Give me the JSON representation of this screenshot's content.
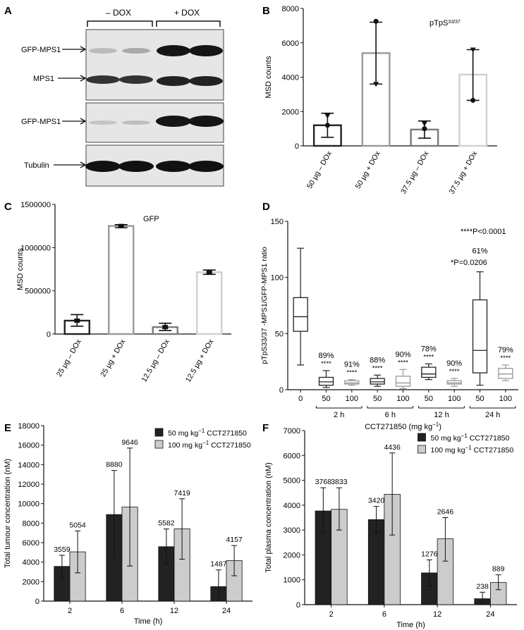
{
  "panel_letters": {
    "A": "A",
    "B": "B",
    "C": "C",
    "D": "D",
    "E": "E",
    "F": "F"
  },
  "blot": {
    "minus_dox": "– DOX",
    "plus_dox": "+ DOX",
    "labels": [
      "GFP-MPS1",
      "MPS1",
      "GFP-MPS1",
      "Tubulin"
    ]
  },
  "colors": {
    "dark_bar": "#222222",
    "light_bar": "#cccccc",
    "grey_bar": "#888888",
    "pale_bar": "#c8c8c8"
  },
  "chart_data": [
    {
      "id": "B",
      "type": "bar",
      "annotation": "pTpS",
      "annotation_sup": "33/37",
      "ylabel": "MSD counts",
      "ylim": [
        0,
        8000
      ],
      "yticks": [
        "0",
        "2000",
        "4000",
        "6000",
        "8000"
      ],
      "categories": [
        "50 µg – DOx",
        "50 µg + DOx",
        "37.5 µg – DOx",
        "37.5 µg + DOx"
      ],
      "values": [
        1200,
        5400,
        950,
        4150
      ],
      "error": [
        [
          500,
          1900
        ],
        [
          3600,
          7200
        ],
        [
          450,
          1450
        ],
        [
          2650,
          5600
        ]
      ],
      "points": [
        [
          1200,
          1750
        ],
        [
          7250,
          3600
        ],
        [
          1000,
          1300
        ],
        [
          2650,
          5600
        ]
      ],
      "bar_colors": [
        "#222222",
        "#9a9a9a",
        "#7a7a7a",
        "#d0d0d0"
      ]
    },
    {
      "id": "C",
      "type": "bar",
      "annotation": "GFP",
      "ylabel": "MSD counts",
      "ylim": [
        0,
        1500000
      ],
      "yticks": [
        "0",
        "500000",
        "1000000",
        "1500000"
      ],
      "categories": [
        "25 µg – DOx",
        "25 µg + DOx",
        "12.5 µg – DOx",
        "12.5 µg + DOx"
      ],
      "values": [
        155000,
        1250000,
        80000,
        715000
      ],
      "error": [
        [
          90000,
          225000
        ],
        [
          1230000,
          1265000
        ],
        [
          40000,
          125000
        ],
        [
          690000,
          740000
        ]
      ],
      "bar_colors": [
        "#222222",
        "#9a9a9a",
        "#7a7a7a",
        "#d0d0d0"
      ]
    },
    {
      "id": "D",
      "type": "boxplot",
      "ylabel": "pTpS33/37 -MPS1/GFP-MPS1 ratio",
      "ylim": [
        0,
        150
      ],
      "yticks": [
        "0",
        "50",
        "100",
        "150"
      ],
      "xlabel": "CCT271850 (mg kg",
      "xlabel_sup": "−1",
      "xlabel_tail": ")",
      "groups": [
        {
          "x": "0",
          "min": 22,
          "q1": 52,
          "median": 65,
          "q3": 82,
          "max": 126,
          "color": "#222222",
          "pct": "",
          "stars": ""
        },
        {
          "x": "50",
          "min": 2,
          "q1": 4,
          "median": 7,
          "q3": 11,
          "max": 17,
          "color": "#222222",
          "pct": "89%",
          "stars": "****"
        },
        {
          "x": "100",
          "min": 4,
          "q1": 5,
          "median": 6,
          "q3": 8,
          "max": 9,
          "color": "#999999",
          "pct": "91%",
          "stars": "****"
        },
        {
          "x": "50",
          "min": 3,
          "q1": 5,
          "median": 7,
          "q3": 10,
          "max": 13,
          "color": "#222222",
          "pct": "88%",
          "stars": "****"
        },
        {
          "x": "100",
          "min": 1,
          "q1": 3,
          "median": 6,
          "q3": 12,
          "max": 18,
          "color": "#999999",
          "pct": "90%",
          "stars": "****"
        },
        {
          "x": "50",
          "min": 9,
          "q1": 11,
          "median": 14,
          "q3": 20,
          "max": 23,
          "color": "#222222",
          "pct": "78%",
          "stars": "****"
        },
        {
          "x": "100",
          "min": 3,
          "q1": 5,
          "median": 6,
          "q3": 8,
          "max": 10,
          "color": "#999999",
          "pct": "90%",
          "stars": "****"
        },
        {
          "x": "50",
          "min": 4,
          "q1": 15,
          "median": 35,
          "q3": 80,
          "max": 105,
          "color": "#222222",
          "pct": "61%",
          "stars": ""
        },
        {
          "x": "100",
          "min": 8,
          "q1": 10,
          "median": 14,
          "q3": 19,
          "max": 22,
          "color": "#999999",
          "pct": "79%",
          "stars": "****"
        }
      ],
      "time_groups": [
        "2 h",
        "6 h",
        "12 h",
        "24 h"
      ],
      "p_note_1": "****P<0.0001",
      "p_note_2": "*P=0.0206"
    },
    {
      "id": "E",
      "type": "bar",
      "ylabel": "Total tumour concentration (nM)",
      "xlabel": "Time (h)",
      "ylim": [
        0,
        18000
      ],
      "yticks": [
        "0",
        "2000",
        "4000",
        "6000",
        "8000",
        "10000",
        "12000",
        "14000",
        "16000",
        "18000"
      ],
      "categories": [
        "2",
        "6",
        "12",
        "24"
      ],
      "series": [
        {
          "name": "50 mg kg",
          "name_sup": "−1",
          "name_tail": " CCT271850",
          "values": [
            3559,
            8880,
            5582,
            1487
          ],
          "labels": [
            "3559",
            "8880",
            "5582",
            "1487"
          ],
          "err": [
            [
              2400,
              4700
            ],
            [
              4400,
              13400
            ],
            [
              3800,
              7400
            ],
            [
              0,
              3200
            ]
          ],
          "color": "#222222"
        },
        {
          "name": "100 mg kg",
          "name_sup": "−1",
          "name_tail": " CCT271850",
          "values": [
            5054,
            9646,
            7419,
            4157
          ],
          "labels": [
            "5054",
            "9646",
            "7419",
            "4157"
          ],
          "err": [
            [
              2900,
              7200
            ],
            [
              3600,
              15700
            ],
            [
              4300,
              10500
            ],
            [
              2600,
              5700
            ]
          ],
          "color": "#cccccc"
        }
      ]
    },
    {
      "id": "F",
      "type": "bar",
      "ylabel": "Total plasma concentration (nM)",
      "xlabel": "Time (h)",
      "ylim": [
        0,
        7000
      ],
      "yticks": [
        "0",
        "1000",
        "2000",
        "3000",
        "4000",
        "5000",
        "6000",
        "7000"
      ],
      "categories": [
        "2",
        "6",
        "12",
        "24"
      ],
      "series": [
        {
          "name": "50 mg kg",
          "name_sup": "−1",
          "name_tail": " CCT271850",
          "values": [
            3768,
            3420,
            1276,
            238
          ],
          "labels": [
            "3768",
            "3420",
            "1276",
            "238"
          ],
          "err": [
            [
              2900,
              4700
            ],
            [
              2900,
              3950
            ],
            [
              750,
              1800
            ],
            [
              0,
              500
            ]
          ],
          "color": "#222222"
        },
        {
          "name": "100 mg kg",
          "name_sup": "−1",
          "name_tail": " CCT271850",
          "values": [
            3833,
            4436,
            2646,
            889
          ],
          "labels": [
            "3833",
            "4436",
            "2646",
            "889"
          ],
          "err": [
            [
              3000,
              4700
            ],
            [
              2800,
              6100
            ],
            [
              1750,
              3500
            ],
            [
              600,
              1200
            ]
          ],
          "color": "#cccccc"
        }
      ]
    }
  ]
}
